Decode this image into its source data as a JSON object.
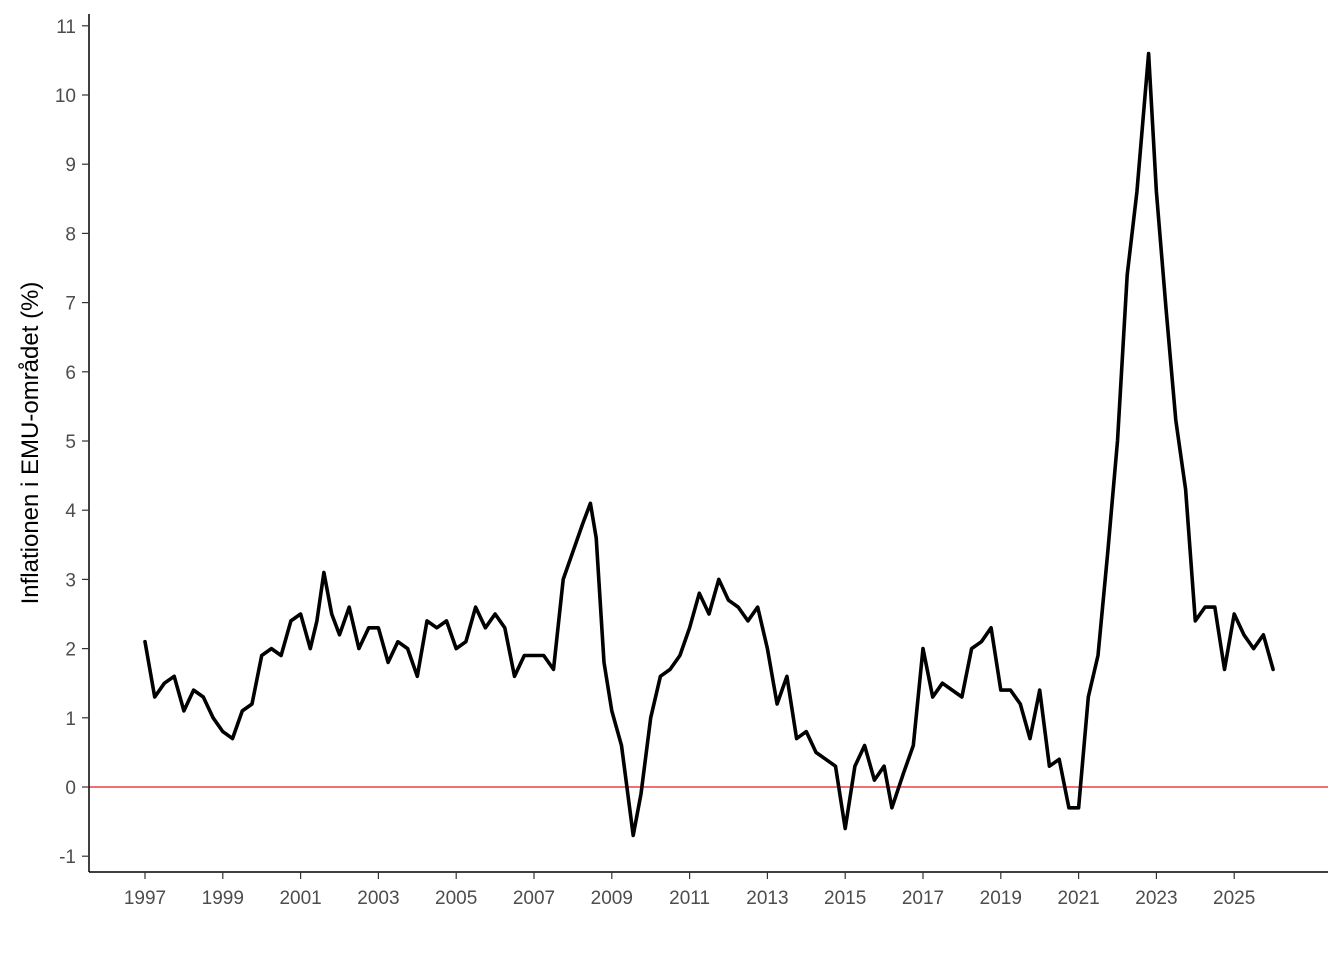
{
  "chart_data": {
    "type": "line",
    "title": "",
    "xlabel": "",
    "ylabel": "Inflationen i EMU-området (%)",
    "xlim": [
      1997,
      2026
    ],
    "ylim": [
      -1,
      11
    ],
    "x_ticks": [
      "1997",
      "1999",
      "2001",
      "2003",
      "2005",
      "2007",
      "2009",
      "2011",
      "2013",
      "2015",
      "2017",
      "2019",
      "2021",
      "2023",
      "2025"
    ],
    "y_ticks": [
      "-1",
      "0",
      "1",
      "2",
      "3",
      "4",
      "5",
      "6",
      "7",
      "8",
      "9",
      "10",
      "11"
    ],
    "grid": false,
    "legend": "none",
    "reference_line": {
      "y": 0,
      "color": "#e41a1c"
    },
    "line_color": "#000000",
    "series": [
      {
        "x": [
          1997.0,
          1997.25,
          1997.5,
          1997.75,
          1998.0,
          1998.25,
          1998.5,
          1998.75,
          1999.0,
          1999.25,
          1999.5,
          1999.75,
          2000.0,
          2000.25,
          2000.5,
          2000.75,
          2001.0,
          2001.25,
          2001.42,
          2001.6,
          2001.8,
          2002.0,
          2002.25,
          2002.5,
          2002.75,
          2003.0,
          2003.25,
          2003.5,
          2003.75,
          2004.0,
          2004.25,
          2004.5,
          2004.75,
          2005.0,
          2005.25,
          2005.5,
          2005.75,
          2006.0,
          2006.25,
          2006.5,
          2006.75,
          2007.0,
          2007.25,
          2007.5,
          2007.75,
          2008.0,
          2008.25,
          2008.45,
          2008.6,
          2008.8,
          2009.0,
          2009.25,
          2009.55,
          2009.75,
          2010.0,
          2010.25,
          2010.5,
          2010.75,
          2011.0,
          2011.25,
          2011.5,
          2011.75,
          2012.0,
          2012.25,
          2012.5,
          2012.75,
          2013.0,
          2013.25,
          2013.5,
          2013.75,
          2014.0,
          2014.25,
          2014.5,
          2014.75,
          2015.0,
          2015.25,
          2015.5,
          2015.75,
          2016.0,
          2016.2,
          2016.5,
          2016.75,
          2017.0,
          2017.25,
          2017.5,
          2017.75,
          2018.0,
          2018.25,
          2018.5,
          2018.75,
          2019.0,
          2019.25,
          2019.5,
          2019.75,
          2020.0,
          2020.25,
          2020.5,
          2020.75,
          2021.0,
          2021.25,
          2021.5,
          2021.75,
          2022.0,
          2022.25,
          2022.5,
          2022.8,
          2023.0,
          2023.25,
          2023.5,
          2023.75,
          2024.0,
          2024.25,
          2024.5,
          2024.75,
          2025.0,
          2025.25,
          2025.5,
          2025.75,
          2026.0
        ],
        "y": [
          2.1,
          1.3,
          1.5,
          1.6,
          1.1,
          1.4,
          1.3,
          1.0,
          0.8,
          0.7,
          1.1,
          1.2,
          1.9,
          2.0,
          1.9,
          2.4,
          2.5,
          2.0,
          2.4,
          3.1,
          2.5,
          2.2,
          2.6,
          2.0,
          2.3,
          2.3,
          1.8,
          2.1,
          2.0,
          1.6,
          2.4,
          2.3,
          2.4,
          2.0,
          2.1,
          2.6,
          2.3,
          2.5,
          2.3,
          1.6,
          1.9,
          1.9,
          1.9,
          1.7,
          3.0,
          3.4,
          3.8,
          4.1,
          3.6,
          1.8,
          1.1,
          0.6,
          -0.7,
          -0.1,
          1.0,
          1.6,
          1.7,
          1.9,
          2.3,
          2.8,
          2.5,
          3.0,
          2.7,
          2.6,
          2.4,
          2.6,
          2.0,
          1.2,
          1.6,
          0.7,
          0.8,
          0.5,
          0.4,
          0.3,
          -0.6,
          0.3,
          0.6,
          0.1,
          0.3,
          -0.3,
          0.2,
          0.6,
          2.0,
          1.3,
          1.5,
          1.4,
          1.3,
          2.0,
          2.1,
          2.3,
          1.4,
          1.4,
          1.2,
          0.7,
          1.4,
          0.3,
          0.4,
          -0.3,
          -0.3,
          1.3,
          1.9,
          3.4,
          5.0,
          7.4,
          8.6,
          10.6,
          8.6,
          6.9,
          5.3,
          4.3,
          2.4,
          2.6,
          2.6,
          1.7,
          2.5,
          2.2,
          2.0,
          2.2,
          1.7
        ]
      }
    ]
  }
}
